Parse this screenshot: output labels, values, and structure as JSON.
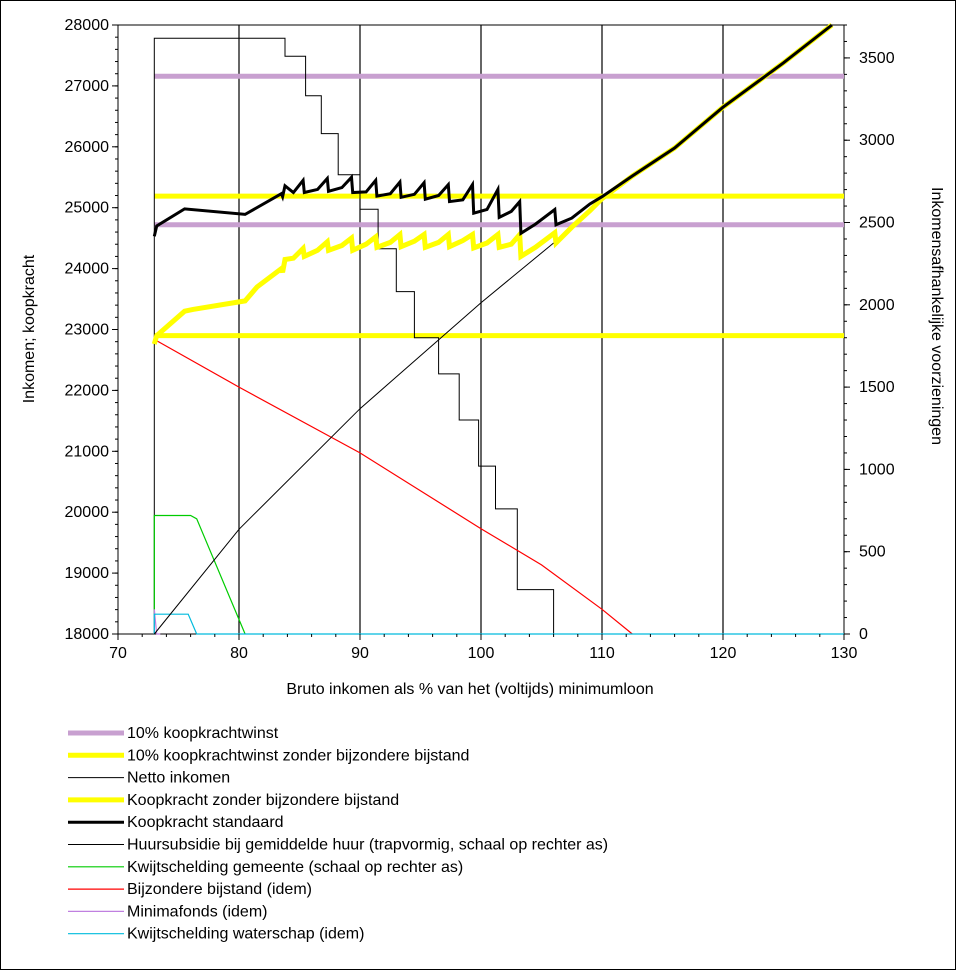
{
  "chart_data": {
    "type": "line",
    "xlabel": "Bruto inkomen als % van het (voltijds) minimumloon",
    "ylabel_left": "Inkomen; koopkracht",
    "ylabel_right": "Inkomensafhankelijke voorzieningen",
    "xlim": [
      70,
      130
    ],
    "ylim_left": [
      18000,
      28000
    ],
    "ylim_right": [
      0,
      3700
    ],
    "x_ticks": [
      70,
      80,
      90,
      100,
      110,
      120,
      130
    ],
    "y_left_ticks": [
      18000,
      19000,
      20000,
      21000,
      22000,
      23000,
      24000,
      25000,
      26000,
      27000,
      28000
    ],
    "y_right_ticks": [
      0,
      500,
      1000,
      1500,
      2000,
      2500,
      3000,
      3500
    ],
    "grid": "vertical lines at x ticks",
    "legend_position": "bottom",
    "series": [
      {
        "name": "10% koopkrachtwinst",
        "axis": "left",
        "color": "#c8a0d0",
        "width": 5,
        "points": [
          [
            73,
            27160
          ],
          [
            130,
            27160
          ],
          [
            null,
            null
          ],
          [
            73,
            24720
          ],
          [
            130,
            24720
          ]
        ]
      },
      {
        "name": "10% koopkrachtwinst zonder bijzondere bijstand",
        "axis": "left",
        "color": "#ffff00",
        "width": 5,
        "points": [
          [
            73,
            25190
          ],
          [
            130,
            25190
          ],
          [
            null,
            null
          ],
          [
            73,
            22900
          ],
          [
            130,
            22900
          ]
        ]
      },
      {
        "name": "Netto inkomen",
        "axis": "left",
        "color": "#000000",
        "width": 1,
        "points": [
          [
            73,
            18000
          ],
          [
            80,
            19720
          ],
          [
            90,
            21700
          ],
          [
            100,
            23440
          ],
          [
            106,
            24420
          ]
        ]
      },
      {
        "name": "Koopkracht zonder bijzondere bijstand",
        "axis": "left",
        "color": "#ffff00",
        "width": 5,
        "points": [
          [
            73,
            22760
          ],
          [
            73.2,
            22900
          ],
          [
            75.5,
            23300
          ],
          [
            76.2,
            23330
          ],
          [
            80.5,
            23470
          ],
          [
            81.5,
            23700
          ],
          [
            83.5,
            24000
          ],
          [
            83.6,
            23940
          ],
          [
            83.8,
            24150
          ],
          [
            84.5,
            24170
          ],
          [
            85.3,
            24330
          ],
          [
            85.4,
            24200
          ],
          [
            86.5,
            24300
          ],
          [
            87.3,
            24440
          ],
          [
            87.4,
            24300
          ],
          [
            88.5,
            24380
          ],
          [
            89.3,
            24500
          ],
          [
            89.4,
            24300
          ],
          [
            90.5,
            24400
          ],
          [
            91.3,
            24520
          ],
          [
            91.4,
            24350
          ],
          [
            92.5,
            24430
          ],
          [
            93.3,
            24560
          ],
          [
            93.4,
            24360
          ],
          [
            94.5,
            24450
          ],
          [
            95.3,
            24560
          ],
          [
            95.4,
            24350
          ],
          [
            96.5,
            24430
          ],
          [
            97.3,
            24560
          ],
          [
            97.4,
            24360
          ],
          [
            98.5,
            24460
          ],
          [
            99.3,
            24560
          ],
          [
            99.4,
            24340
          ],
          [
            100.5,
            24420
          ],
          [
            101.4,
            24560
          ],
          [
            101.5,
            24350
          ],
          [
            102.5,
            24400
          ],
          [
            103.2,
            24560
          ],
          [
            103.3,
            24200
          ],
          [
            104.5,
            24350
          ],
          [
            106.1,
            24590
          ],
          [
            106.2,
            24420
          ],
          [
            107.5,
            24680
          ],
          [
            109,
            24950
          ],
          [
            110,
            25150
          ],
          [
            112.5,
            25520
          ],
          [
            116,
            25980
          ],
          [
            120,
            26650
          ],
          [
            125,
            27380
          ],
          [
            129,
            28000
          ]
        ]
      },
      {
        "name": "Koopkracht standaard",
        "axis": "left",
        "color": "#000000",
        "width": 3,
        "points": [
          [
            73,
            24530
          ],
          [
            73.2,
            24700
          ],
          [
            75.5,
            24980
          ],
          [
            80.5,
            24890
          ],
          [
            83.5,
            25230
          ],
          [
            83.6,
            25180
          ],
          [
            83.8,
            25360
          ],
          [
            84.5,
            25250
          ],
          [
            85.3,
            25450
          ],
          [
            85.4,
            25250
          ],
          [
            86.5,
            25300
          ],
          [
            87.3,
            25480
          ],
          [
            87.4,
            25270
          ],
          [
            88.5,
            25330
          ],
          [
            89.3,
            25500
          ],
          [
            89.4,
            25250
          ],
          [
            90.5,
            25260
          ],
          [
            91.3,
            25450
          ],
          [
            91.4,
            25190
          ],
          [
            92.5,
            25230
          ],
          [
            93.3,
            25420
          ],
          [
            93.4,
            25170
          ],
          [
            94.5,
            25220
          ],
          [
            95.3,
            25410
          ],
          [
            95.4,
            25140
          ],
          [
            96.5,
            25200
          ],
          [
            97.3,
            25380
          ],
          [
            97.4,
            25100
          ],
          [
            98.5,
            25130
          ],
          [
            99.3,
            25380
          ],
          [
            99.4,
            24910
          ],
          [
            100.5,
            24970
          ],
          [
            101.4,
            25300
          ],
          [
            101.5,
            24840
          ],
          [
            102.5,
            24940
          ],
          [
            103.2,
            25100
          ],
          [
            103.3,
            24580
          ],
          [
            104.5,
            24730
          ],
          [
            106.1,
            24970
          ],
          [
            106.2,
            24720
          ],
          [
            107.5,
            24830
          ],
          [
            109,
            25060
          ],
          [
            110,
            25180
          ],
          [
            112.5,
            25520
          ],
          [
            116,
            25980
          ],
          [
            120,
            26650
          ],
          [
            125,
            27380
          ],
          [
            129,
            28000
          ]
        ]
      },
      {
        "name": "Huursubsidie bij gemiddelde huur (trapvormig, schaal op rechter as)",
        "axis": "right",
        "color": "#000000",
        "width": 1,
        "points": [
          [
            73,
            0
          ],
          [
            73,
            3620
          ],
          [
            83.8,
            3620
          ],
          [
            83.8,
            3510
          ],
          [
            85.5,
            3510
          ],
          [
            85.5,
            3270
          ],
          [
            86.8,
            3270
          ],
          [
            86.8,
            3040
          ],
          [
            88.2,
            3040
          ],
          [
            88.2,
            2790
          ],
          [
            90,
            2790
          ],
          [
            90,
            2580
          ],
          [
            91.5,
            2580
          ],
          [
            91.5,
            2340
          ],
          [
            93,
            2340
          ],
          [
            93,
            2080
          ],
          [
            94.5,
            2080
          ],
          [
            94.5,
            1800
          ],
          [
            96.5,
            1800
          ],
          [
            96.5,
            1580
          ],
          [
            98.2,
            1580
          ],
          [
            98.2,
            1300
          ],
          [
            99.8,
            1300
          ],
          [
            99.8,
            1020
          ],
          [
            101.2,
            1020
          ],
          [
            101.2,
            760
          ],
          [
            103,
            760
          ],
          [
            103,
            270
          ],
          [
            106,
            270
          ],
          [
            106,
            0
          ]
        ]
      },
      {
        "name": "Kwijtschelding gemeente (schaal op rechter as)",
        "axis": "right",
        "color": "#00cc00",
        "width": 1.2,
        "points": [
          [
            73,
            0
          ],
          [
            73,
            720
          ],
          [
            76,
            720
          ],
          [
            76.5,
            700
          ],
          [
            80.5,
            0
          ]
        ]
      },
      {
        "name": "Bijzondere bijstand (idem)",
        "axis": "right",
        "color": "#ff0000",
        "width": 1.2,
        "points": [
          [
            73,
            1790
          ],
          [
            80,
            1500
          ],
          [
            90,
            1100
          ],
          [
            100,
            640
          ],
          [
            105,
            420
          ],
          [
            110,
            150
          ],
          [
            112.5,
            0
          ]
        ]
      },
      {
        "name": "Minimafonds (idem)",
        "axis": "right",
        "color": "#c080e0",
        "width": 1.2,
        "points": [
          [
            73,
            0
          ],
          [
            73,
            150
          ],
          [
            73.2,
            0
          ],
          [
            73.5,
            0
          ]
        ]
      },
      {
        "name": "Kwijtschelding waterschap (idem)",
        "axis": "right",
        "color": "#00bbdd",
        "width": 1.2,
        "points": [
          [
            73,
            0
          ],
          [
            73,
            120
          ],
          [
            75.8,
            120
          ],
          [
            76.5,
            0
          ],
          [
            130,
            0
          ]
        ]
      }
    ]
  }
}
